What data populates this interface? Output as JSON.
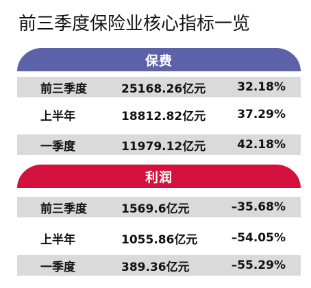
{
  "title": "前三季度保险业核心指标一览",
  "colors": {
    "premium_banner": "#5b62a8",
    "profit_banner": "#d4113c",
    "row_shade": "#dadada"
  },
  "premium": {
    "header": "保费",
    "rows": [
      {
        "period": "前三季度",
        "value": "25168.26亿元",
        "growth": "32.18%"
      },
      {
        "period": "上半年",
        "value": "18812.82亿元",
        "growth": "37.29%"
      },
      {
        "period": "一季度",
        "value": "11979.12亿元",
        "growth": "42.18%"
      }
    ]
  },
  "profit": {
    "header": "利润",
    "rows": [
      {
        "period": "前三季度",
        "value": "1569.6亿元",
        "growth": "–35.68%"
      },
      {
        "period": "上半年",
        "value": "1055.86亿元",
        "growth": "–54.05%"
      },
      {
        "period": "一季度",
        "value": "389.36亿元",
        "growth": "–55.29%"
      }
    ]
  }
}
